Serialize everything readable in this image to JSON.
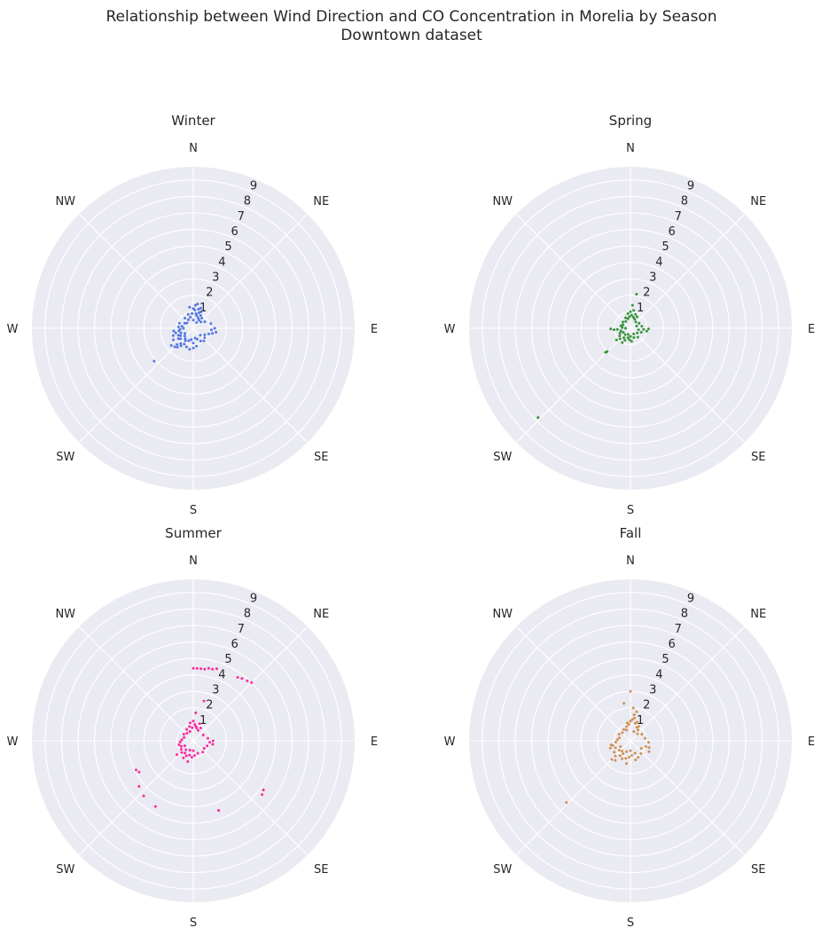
{
  "figure": {
    "title_line1": "Relationship between Wind Direction and CO Concentration in Morelia by Season",
    "title_line2": "Downtown dataset"
  },
  "chart_data": [
    {
      "type": "scatter",
      "projection": "polar",
      "title": "Winter",
      "color": "#4169e1",
      "theta_labels": [
        "N",
        "NE",
        "E",
        "SE",
        "S",
        "SW",
        "W",
        "NW"
      ],
      "theta_zero": "N",
      "theta_direction": "clockwise",
      "r_ticks": [
        1,
        2,
        3,
        4,
        5,
        6,
        7,
        8,
        9
      ],
      "rlim": [
        0,
        9.8
      ],
      "grid": true,
      "points": [
        {
          "theta": 0,
          "r": 1.2
        },
        {
          "theta": 5,
          "r": 1.1
        },
        {
          "theta": 10,
          "r": 0.9
        },
        {
          "theta": 15,
          "r": 0.8
        },
        {
          "theta": 20,
          "r": 1.0
        },
        {
          "theta": 25,
          "r": 0.7
        },
        {
          "theta": 30,
          "r": 0.9
        },
        {
          "theta": 35,
          "r": 0.6
        },
        {
          "theta": 40,
          "r": 0.8
        },
        {
          "theta": 350,
          "r": 1.3
        },
        {
          "theta": 355,
          "r": 0.9
        },
        {
          "theta": 345,
          "r": 0.7
        },
        {
          "theta": 10,
          "r": 1.5
        },
        {
          "theta": 20,
          "r": 1.3
        },
        {
          "theta": 0,
          "r": 0.5
        },
        {
          "theta": 30,
          "r": 0.4
        },
        {
          "theta": 60,
          "r": 0.8
        },
        {
          "theta": 75,
          "r": 1.1
        },
        {
          "theta": 90,
          "r": 1.3
        },
        {
          "theta": 100,
          "r": 1.4
        },
        {
          "theta": 110,
          "r": 1.0
        },
        {
          "theta": 120,
          "r": 0.8
        },
        {
          "theta": 135,
          "r": 0.6
        },
        {
          "theta": 150,
          "r": 0.9
        },
        {
          "theta": 170,
          "r": 1.1
        },
        {
          "theta": 180,
          "r": 1.2
        },
        {
          "theta": 190,
          "r": 1.3
        },
        {
          "theta": 200,
          "r": 1.2
        },
        {
          "theta": 210,
          "r": 1.1
        },
        {
          "theta": 215,
          "r": 1.3
        },
        {
          "theta": 220,
          "r": 1.2
        },
        {
          "theta": 225,
          "r": 1.4
        },
        {
          "theta": 230,
          "r": 1.0
        },
        {
          "theta": 235,
          "r": 1.1
        },
        {
          "theta": 240,
          "r": 0.9
        },
        {
          "theta": 245,
          "r": 1.0
        },
        {
          "theta": 250,
          "r": 0.8
        },
        {
          "theta": 255,
          "r": 1.1
        },
        {
          "theta": 260,
          "r": 0.9
        },
        {
          "theta": 265,
          "r": 0.8
        },
        {
          "theta": 270,
          "r": 0.6
        },
        {
          "theta": 280,
          "r": 0.7
        },
        {
          "theta": 290,
          "r": 0.9
        },
        {
          "theta": 300,
          "r": 0.6
        },
        {
          "theta": 310,
          "r": 0.5
        },
        {
          "theta": 320,
          "r": 0.8
        },
        {
          "theta": 330,
          "r": 0.6
        },
        {
          "theta": 340,
          "r": 0.9
        },
        {
          "theta": 212,
          "r": 0.9
        },
        {
          "theta": 218,
          "r": 0.8
        },
        {
          "theta": 228,
          "r": 0.7
        },
        {
          "theta": 238,
          "r": 0.6
        },
        {
          "theta": 200,
          "r": 0.8
        },
        {
          "theta": 190,
          "r": 0.7
        },
        {
          "theta": 180,
          "r": 0.9
        },
        {
          "theta": 170,
          "r": 0.6
        },
        {
          "theta": 160,
          "r": 0.7
        },
        {
          "theta": 225,
          "r": 1.6
        },
        {
          "theta": 220,
          "r": 1.5
        },
        {
          "theta": 232,
          "r": 1.7
        },
        {
          "theta": 240,
          "r": 1.4
        },
        {
          "theta": 5,
          "r": 1.4
        },
        {
          "theta": 15,
          "r": 1.2
        },
        {
          "theta": 25,
          "r": 1.1
        },
        {
          "theta": 50,
          "r": 0.6
        },
        {
          "theta": 95,
          "r": 1.1
        },
        {
          "theta": 105,
          "r": 1.2
        },
        {
          "theta": 130,
          "r": 0.9
        },
        {
          "theta": 140,
          "r": 1.0
        },
        {
          "theta": 250,
          "r": 1.3
        },
        {
          "theta": 262,
          "r": 1.2
        },
        {
          "theta": 275,
          "r": 0.9
        },
        {
          "theta": 230,
          "r": 3.1
        }
      ]
    },
    {
      "type": "scatter",
      "projection": "polar",
      "title": "Spring",
      "color": "#228b22",
      "theta_labels": [
        "N",
        "NE",
        "E",
        "SE",
        "S",
        "SW",
        "W",
        "NW"
      ],
      "theta_zero": "N",
      "theta_direction": "clockwise",
      "r_ticks": [
        1,
        2,
        3,
        4,
        5,
        6,
        7,
        8,
        9
      ],
      "rlim": [
        0,
        9.8
      ],
      "grid": true,
      "points": [
        {
          "theta": 0,
          "r": 1.0
        },
        {
          "theta": 5,
          "r": 0.8
        },
        {
          "theta": 10,
          "r": 1.1
        },
        {
          "theta": 15,
          "r": 0.7
        },
        {
          "theta": 20,
          "r": 0.9
        },
        {
          "theta": 25,
          "r": 0.6
        },
        {
          "theta": 30,
          "r": 0.8
        },
        {
          "theta": 40,
          "r": 0.5
        },
        {
          "theta": 350,
          "r": 0.9
        },
        {
          "theta": 355,
          "r": 0.7
        },
        {
          "theta": 345,
          "r": 0.6
        },
        {
          "theta": 10,
          "r": 2.1
        },
        {
          "theta": 5,
          "r": 1.4
        },
        {
          "theta": 60,
          "r": 0.6
        },
        {
          "theta": 80,
          "r": 0.7
        },
        {
          "theta": 95,
          "r": 0.8
        },
        {
          "theta": 110,
          "r": 0.7
        },
        {
          "theta": 125,
          "r": 0.5
        },
        {
          "theta": 140,
          "r": 0.7
        },
        {
          "theta": 160,
          "r": 0.6
        },
        {
          "theta": 175,
          "r": 0.8
        },
        {
          "theta": 185,
          "r": 0.7
        },
        {
          "theta": 195,
          "r": 0.6
        },
        {
          "theta": 205,
          "r": 0.8
        },
        {
          "theta": 215,
          "r": 0.7
        },
        {
          "theta": 225,
          "r": 0.9
        },
        {
          "theta": 235,
          "r": 0.8
        },
        {
          "theta": 245,
          "r": 0.7
        },
        {
          "theta": 255,
          "r": 0.6
        },
        {
          "theta": 265,
          "r": 0.8
        },
        {
          "theta": 275,
          "r": 0.5
        },
        {
          "theta": 285,
          "r": 0.6
        },
        {
          "theta": 295,
          "r": 0.5
        },
        {
          "theta": 310,
          "r": 0.6
        },
        {
          "theta": 325,
          "r": 0.5
        },
        {
          "theta": 335,
          "r": 0.7
        },
        {
          "theta": 200,
          "r": 0.4
        },
        {
          "theta": 220,
          "r": 0.5
        },
        {
          "theta": 240,
          "r": 0.5
        },
        {
          "theta": 180,
          "r": 0.5
        },
        {
          "theta": 150,
          "r": 0.4
        },
        {
          "theta": 100,
          "r": 0.5
        },
        {
          "theta": 70,
          "r": 0.4
        },
        {
          "theta": 270,
          "r": 0.3
        },
        {
          "theta": 265,
          "r": 1.0
        },
        {
          "theta": 268,
          "r": 1.2
        },
        {
          "theta": 100,
          "r": 1.0
        },
        {
          "theta": 92,
          "r": 1.1
        },
        {
          "theta": 225,
          "r": 2.0
        },
        {
          "theta": 226,
          "r": 2.1
        },
        {
          "theta": 210,
          "r": 1.0
        },
        {
          "theta": 230,
          "r": 1.1
        },
        {
          "theta": 226,
          "r": 7.8
        }
      ]
    },
    {
      "type": "scatter",
      "projection": "polar",
      "title": "Summer",
      "color": "#ff1493",
      "theta_labels": [
        "N",
        "NE",
        "E",
        "SE",
        "S",
        "SW",
        "W",
        "NW"
      ],
      "theta_zero": "N",
      "theta_direction": "clockwise",
      "r_ticks": [
        1,
        2,
        3,
        4,
        5,
        6,
        7,
        8,
        9
      ],
      "rlim": [
        0,
        9.8
      ],
      "grid": true,
      "points": [
        {
          "theta": 0,
          "r": 1.2
        },
        {
          "theta": 5,
          "r": 1.0
        },
        {
          "theta": 10,
          "r": 0.9
        },
        {
          "theta": 15,
          "r": 0.8
        },
        {
          "theta": 20,
          "r": 1.1
        },
        {
          "theta": 25,
          "r": 0.7
        },
        {
          "theta": 30,
          "r": 0.9
        },
        {
          "theta": 350,
          "r": 1.1
        },
        {
          "theta": 355,
          "r": 0.8
        },
        {
          "theta": 345,
          "r": 0.9
        },
        {
          "theta": 340,
          "r": 0.6
        },
        {
          "theta": 5,
          "r": 1.7
        },
        {
          "theta": 15,
          "r": 2.5
        },
        {
          "theta": 60,
          "r": 0.7
        },
        {
          "theta": 80,
          "r": 0.9
        },
        {
          "theta": 95,
          "r": 1.0
        },
        {
          "theta": 110,
          "r": 0.9
        },
        {
          "theta": 125,
          "r": 0.8
        },
        {
          "theta": 140,
          "r": 0.9
        },
        {
          "theta": 160,
          "r": 0.8
        },
        {
          "theta": 175,
          "r": 0.9
        },
        {
          "theta": 185,
          "r": 1.0
        },
        {
          "theta": 195,
          "r": 0.9
        },
        {
          "theta": 205,
          "r": 1.0
        },
        {
          "theta": 215,
          "r": 0.9
        },
        {
          "theta": 225,
          "r": 1.0
        },
        {
          "theta": 235,
          "r": 0.9
        },
        {
          "theta": 245,
          "r": 0.8
        },
        {
          "theta": 255,
          "r": 0.9
        },
        {
          "theta": 265,
          "r": 0.8
        },
        {
          "theta": 275,
          "r": 0.7
        },
        {
          "theta": 290,
          "r": 0.6
        },
        {
          "theta": 305,
          "r": 0.7
        },
        {
          "theta": 320,
          "r": 0.6
        },
        {
          "theta": 330,
          "r": 0.8
        },
        {
          "theta": 200,
          "r": 0.6
        },
        {
          "theta": 220,
          "r": 0.7
        },
        {
          "theta": 240,
          "r": 0.6
        },
        {
          "theta": 180,
          "r": 0.6
        },
        {
          "theta": 100,
          "r": 1.2
        },
        {
          "theta": 90,
          "r": 1.2
        },
        {
          "theta": 210,
          "r": 1.2
        },
        {
          "theta": 230,
          "r": 1.3
        },
        {
          "theta": 195,
          "r": 1.3
        },
        {
          "theta": 0,
          "r": 4.4
        },
        {
          "theta": 3,
          "r": 4.4
        },
        {
          "theta": 6,
          "r": 4.4
        },
        {
          "theta": 9,
          "r": 4.4
        },
        {
          "theta": 12,
          "r": 4.5
        },
        {
          "theta": 15,
          "r": 4.5
        },
        {
          "theta": 18,
          "r": 4.6
        },
        {
          "theta": 35,
          "r": 4.7
        },
        {
          "theta": 38,
          "r": 4.8
        },
        {
          "theta": 42,
          "r": 4.9
        },
        {
          "theta": 45,
          "r": 5.0
        },
        {
          "theta": 125,
          "r": 5.2
        },
        {
          "theta": 128,
          "r": 5.3
        },
        {
          "theta": 160,
          "r": 4.5
        },
        {
          "theta": 210,
          "r": 4.6
        },
        {
          "theta": 222,
          "r": 4.5
        },
        {
          "theta": 230,
          "r": 4.3
        },
        {
          "theta": 240,
          "r": 3.8
        },
        {
          "theta": 243,
          "r": 3.9
        }
      ]
    },
    {
      "type": "scatter",
      "projection": "polar",
      "title": "Fall",
      "color": "#cd853f",
      "theta_labels": [
        "N",
        "NE",
        "E",
        "SE",
        "S",
        "SW",
        "W",
        "NW"
      ],
      "theta_zero": "N",
      "theta_direction": "clockwise",
      "r_ticks": [
        1,
        2,
        3,
        4,
        5,
        6,
        7,
        8,
        9
      ],
      "rlim": [
        0,
        9.8
      ],
      "grid": true,
      "points": [
        {
          "theta": 0,
          "r": 1.2
        },
        {
          "theta": 5,
          "r": 1.3
        },
        {
          "theta": 10,
          "r": 1.4
        },
        {
          "theta": 15,
          "r": 1.1
        },
        {
          "theta": 20,
          "r": 1.2
        },
        {
          "theta": 25,
          "r": 0.9
        },
        {
          "theta": 30,
          "r": 1.0
        },
        {
          "theta": 35,
          "r": 0.8
        },
        {
          "theta": 350,
          "r": 1.1
        },
        {
          "theta": 355,
          "r": 1.0
        },
        {
          "theta": 345,
          "r": 0.9
        },
        {
          "theta": 340,
          "r": 0.7
        },
        {
          "theta": 5,
          "r": 2.0
        },
        {
          "theta": 0,
          "r": 3.0
        },
        {
          "theta": 350,
          "r": 2.3
        },
        {
          "theta": 12,
          "r": 1.8
        },
        {
          "theta": 8,
          "r": 1.6
        },
        {
          "theta": 60,
          "r": 0.8
        },
        {
          "theta": 80,
          "r": 0.9
        },
        {
          "theta": 95,
          "r": 1.1
        },
        {
          "theta": 110,
          "r": 1.0
        },
        {
          "theta": 125,
          "r": 0.8
        },
        {
          "theta": 140,
          "r": 1.0
        },
        {
          "theta": 155,
          "r": 1.1
        },
        {
          "theta": 160,
          "r": 0.8
        },
        {
          "theta": 175,
          "r": 0.9
        },
        {
          "theta": 185,
          "r": 1.0
        },
        {
          "theta": 195,
          "r": 1.1
        },
        {
          "theta": 205,
          "r": 1.2
        },
        {
          "theta": 215,
          "r": 1.1
        },
        {
          "theta": 225,
          "r": 1.3
        },
        {
          "theta": 235,
          "r": 1.2
        },
        {
          "theta": 245,
          "r": 1.0
        },
        {
          "theta": 255,
          "r": 1.1
        },
        {
          "theta": 265,
          "r": 0.9
        },
        {
          "theta": 275,
          "r": 0.8
        },
        {
          "theta": 285,
          "r": 0.7
        },
        {
          "theta": 300,
          "r": 0.8
        },
        {
          "theta": 315,
          "r": 0.7
        },
        {
          "theta": 330,
          "r": 0.8
        },
        {
          "theta": 200,
          "r": 0.7
        },
        {
          "theta": 220,
          "r": 0.8
        },
        {
          "theta": 240,
          "r": 0.7
        },
        {
          "theta": 180,
          "r": 0.6
        },
        {
          "theta": 210,
          "r": 0.9
        },
        {
          "theta": 230,
          "r": 0.9
        },
        {
          "theta": 250,
          "r": 1.3
        },
        {
          "theta": 258,
          "r": 1.2
        },
        {
          "theta": 218,
          "r": 1.5
        },
        {
          "theta": 225,
          "r": 1.6
        },
        {
          "theta": 120,
          "r": 1.3
        },
        {
          "theta": 110,
          "r": 1.2
        },
        {
          "theta": 165,
          "r": 1.2
        },
        {
          "theta": 190,
          "r": 1.4
        },
        {
          "theta": 20,
          "r": 0.6
        },
        {
          "theta": 45,
          "r": 0.6
        },
        {
          "theta": 226,
          "r": 5.4
        }
      ]
    }
  ]
}
